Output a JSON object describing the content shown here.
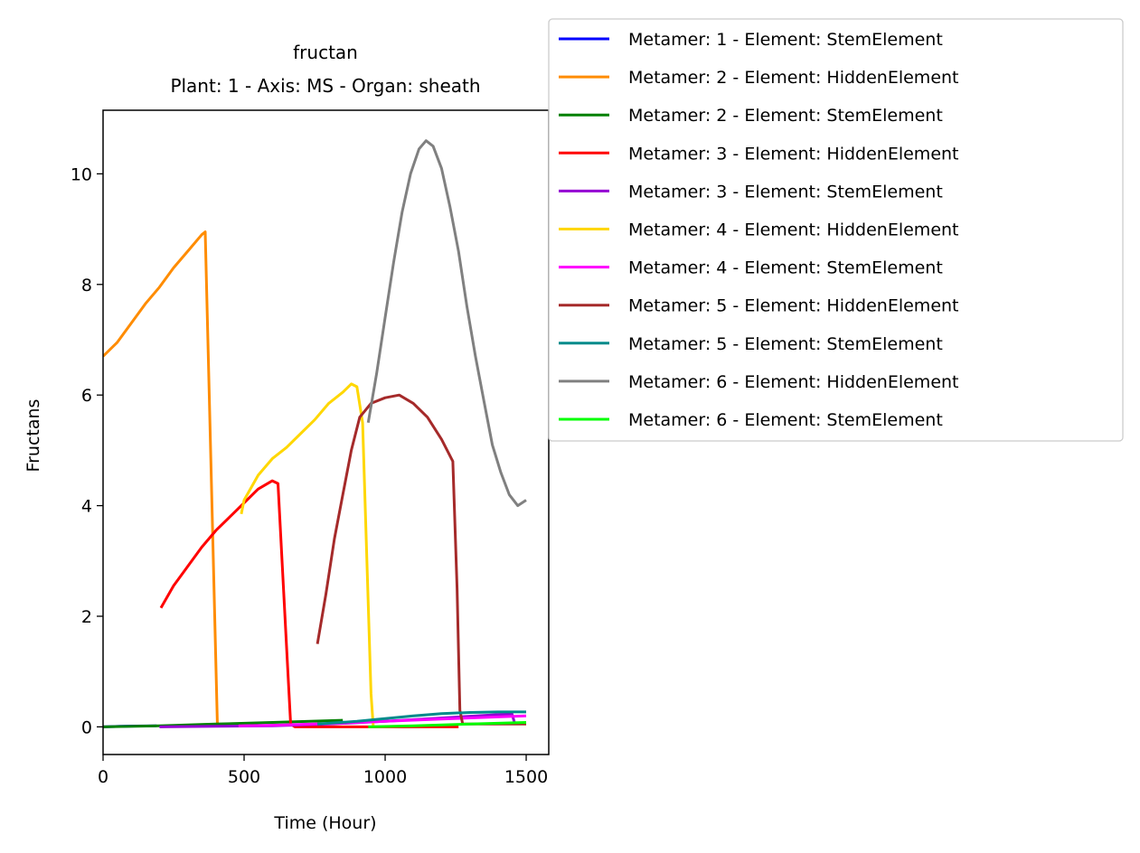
{
  "chart_data": {
    "type": "line",
    "title": "fructan",
    "subtitle": "Plant: 1 - Axis: MS - Organ: sheath",
    "xlabel": "Time (Hour)",
    "ylabel": "Fructans",
    "xlim": [
      0,
      1580
    ],
    "ylim": [
      -0.5,
      11.15
    ],
    "xticks": [
      0,
      500,
      1000,
      1500
    ],
    "yticks": [
      0,
      2,
      4,
      6,
      8,
      10
    ],
    "grid": false,
    "legend_position": "top-right, outside plot",
    "series": [
      {
        "name": "Metamer: 1 - Element: StemElement",
        "color": "#0000ff",
        "x": [
          0,
          60,
          120,
          190
        ],
        "y": [
          0,
          0.01,
          0.015,
          0.02
        ]
      },
      {
        "name": "Metamer: 2 - Element: HiddenElement",
        "color": "#ff8c00",
        "x": [
          0,
          50,
          100,
          150,
          200,
          250,
          300,
          350,
          362,
          405,
          410
        ],
        "y": [
          6.7,
          6.95,
          7.3,
          7.65,
          7.95,
          8.3,
          8.6,
          8.9,
          8.95,
          0.08,
          0
        ]
      },
      {
        "name": "Metamer: 2 - Element: StemElement",
        "color": "#008000",
        "x": [
          0,
          200,
          400,
          600,
          850
        ],
        "y": [
          0,
          0.02,
          0.05,
          0.08,
          0.12
        ]
      },
      {
        "name": "Metamer: 3 - Element: HiddenElement",
        "color": "#ff0000",
        "x": [
          205,
          250,
          300,
          350,
          400,
          450,
          500,
          550,
          600,
          620,
          650,
          665,
          680,
          800,
          950,
          1100,
          1200,
          1260
        ],
        "y": [
          2.15,
          2.55,
          2.9,
          3.25,
          3.55,
          3.8,
          4.05,
          4.3,
          4.45,
          4.4,
          1.5,
          0.05,
          0,
          0,
          0,
          0,
          0,
          0
        ]
      },
      {
        "name": "Metamer: 3 - Element: StemElement",
        "color": "#9400d3",
        "x": [
          200,
          400,
          600,
          800,
          1000,
          1200,
          1400,
          1450,
          1460
        ],
        "y": [
          0,
          0.01,
          0.02,
          0.05,
          0.1,
          0.16,
          0.22,
          0.23,
          0.05
        ]
      },
      {
        "name": "Metamer: 4 - Element: HiddenElement",
        "color": "#ffd700",
        "x": [
          490,
          500,
          550,
          600,
          650,
          700,
          750,
          800,
          850,
          880,
          900,
          920,
          950,
          958
        ],
        "y": [
          3.85,
          4.1,
          4.55,
          4.85,
          5.05,
          5.3,
          5.55,
          5.85,
          6.05,
          6.2,
          6.15,
          5.5,
          0.6,
          0
        ]
      },
      {
        "name": "Metamer: 4 - Element: StemElement",
        "color": "#ff00ff",
        "x": [
          480,
          600,
          800,
          1000,
          1200,
          1400,
          1500
        ],
        "y": [
          0.02,
          0.03,
          0.06,
          0.1,
          0.14,
          0.18,
          0.2
        ]
      },
      {
        "name": "Metamer: 5 - Element: HiddenElement",
        "color": "#a52a2a",
        "x": [
          760,
          790,
          820,
          850,
          880,
          910,
          950,
          1000,
          1050,
          1100,
          1150,
          1200,
          1240,
          1255,
          1265,
          1275,
          1350,
          1450,
          1500
        ],
        "y": [
          1.5,
          2.4,
          3.4,
          4.2,
          5.0,
          5.6,
          5.85,
          5.95,
          6.0,
          5.85,
          5.6,
          5.2,
          4.8,
          2.5,
          0.3,
          0.05,
          0.05,
          0.05,
          0.05
        ]
      },
      {
        "name": "Metamer: 5 - Element: StemElement",
        "color": "#008b8b",
        "x": [
          760,
          900,
          1000,
          1100,
          1200,
          1300,
          1400,
          1500
        ],
        "y": [
          0.05,
          0.1,
          0.15,
          0.2,
          0.24,
          0.26,
          0.27,
          0.27
        ]
      },
      {
        "name": "Metamer: 6 - Element: HiddenElement",
        "color": "#808080",
        "x": [
          940,
          970,
          1000,
          1030,
          1060,
          1090,
          1120,
          1145,
          1170,
          1200,
          1230,
          1260,
          1290,
          1320,
          1350,
          1380,
          1410,
          1440,
          1470,
          1500
        ],
        "y": [
          5.5,
          6.4,
          7.4,
          8.4,
          9.3,
          10.0,
          10.45,
          10.6,
          10.5,
          10.1,
          9.4,
          8.6,
          7.6,
          6.7,
          5.9,
          5.1,
          4.6,
          4.2,
          4.0,
          4.1
        ]
      },
      {
        "name": "Metamer: 6 - Element: StemElement",
        "color": "#00ff00",
        "x": [
          940,
          1100,
          1300,
          1500
        ],
        "y": [
          0,
          0.02,
          0.05,
          0.08
        ]
      }
    ]
  }
}
